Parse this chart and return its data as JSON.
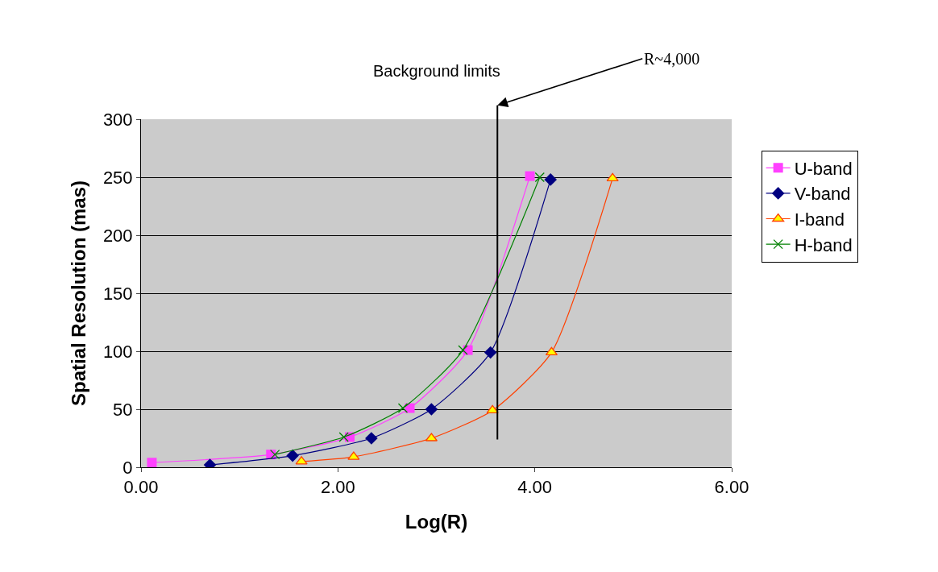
{
  "chart_data": {
    "type": "line",
    "xlabel": "Log(R)",
    "ylabel": "Spatial Resolution (mas)",
    "xlim": [
      0,
      6
    ],
    "xticks": [
      {
        "value": 0,
        "label": "0.00"
      },
      {
        "value": 2,
        "label": "2.00"
      },
      {
        "value": 4,
        "label": "4.00"
      },
      {
        "value": 6,
        "label": "6.00"
      }
    ],
    "ylim": [
      0,
      300
    ],
    "yticks": [
      0,
      50,
      100,
      150,
      200,
      250,
      300
    ],
    "grid": "y",
    "legend": "right",
    "series": [
      {
        "name": "U-band",
        "color": "#ff40ff",
        "marker": "square",
        "x": [
          0.11,
          1.32,
          2.12,
          2.73,
          3.32,
          3.95
        ],
        "values": [
          4,
          11,
          26,
          51,
          101,
          251
        ]
      },
      {
        "name": "V-band",
        "color": "#000080",
        "marker": "diamond",
        "x": [
          0.7,
          1.54,
          2.34,
          2.95,
          3.55,
          4.16
        ],
        "values": [
          2,
          10,
          25,
          50,
          99,
          248
        ]
      },
      {
        "name": "I-band",
        "color": "#ff4000",
        "marker": "triangle",
        "x": [
          1.63,
          2.16,
          2.95,
          3.57,
          4.17,
          4.79
        ],
        "values": [
          5,
          9,
          25,
          49,
          99,
          249
        ]
      },
      {
        "name": "H-band",
        "color": "#008000",
        "marker": "cross",
        "x": [
          1.36,
          2.06,
          2.66,
          3.27,
          4.05
        ],
        "values": [
          11,
          26,
          51,
          101,
          250
        ]
      }
    ],
    "ref_lines": [
      {
        "axis": "x",
        "value": 3.62,
        "label": "Background limits",
        "color": "#000000"
      }
    ],
    "annotations": [
      "R~4,000"
    ]
  }
}
